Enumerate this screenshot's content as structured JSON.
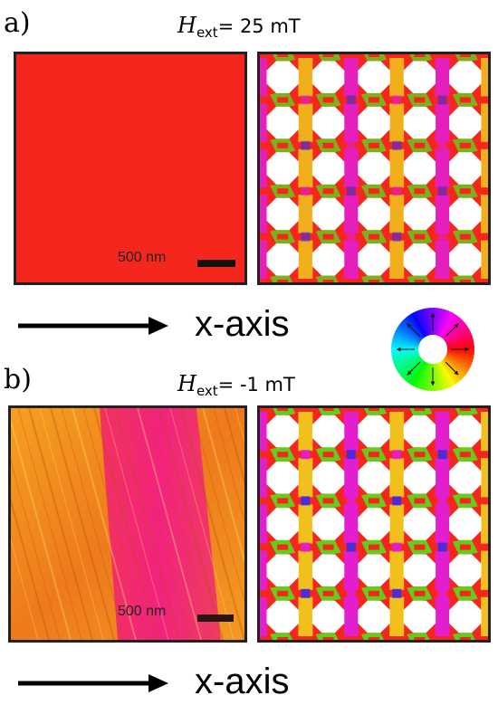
{
  "panel_a": {
    "letter": "a)",
    "field_symbol": "H",
    "field_subscript": "ext",
    "field_value": "= 25 mT",
    "scale_bar_label": "500 nm",
    "axis_label": "x-axis"
  },
  "panel_b": {
    "letter": "b)",
    "field_symbol": "H",
    "field_subscript": "ext",
    "field_value": "= -1 mT",
    "scale_bar_label": "500 nm",
    "axis_label": "x-axis"
  },
  "antidot_grid": {
    "rows": 5,
    "cols": 5
  },
  "colors": {
    "uniform_red": "#f5271d",
    "domain_orange": "#f08a1e",
    "domain_magenta": "#f02e7c",
    "green": "#5fd41c",
    "blue": "#3a2cf0",
    "magenta": "#e01ed8",
    "yellow": "#f0c81c"
  },
  "color_wheel": {
    "icon": "color-wheel-icon"
  }
}
